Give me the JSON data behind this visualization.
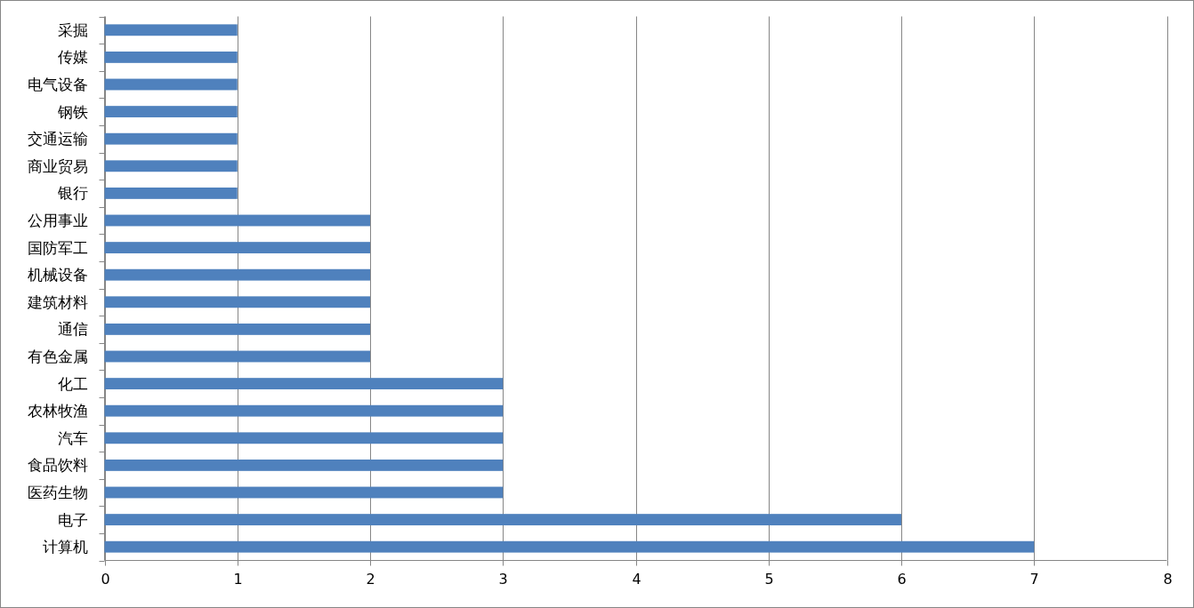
{
  "chart_data": {
    "type": "bar",
    "orientation": "horizontal",
    "categories": [
      "采掘",
      "传媒",
      "电气设备",
      "钢铁",
      "交通运输",
      "商业贸易",
      "银行",
      "公用事业",
      "国防军工",
      "机械设备",
      "建筑材料",
      "通信",
      "有色金属",
      "化工",
      "农林牧渔",
      "汽车",
      "食品饮料",
      "医药生物",
      "电子",
      "计算机"
    ],
    "values": [
      1,
      1,
      1,
      1,
      1,
      1,
      1,
      2,
      2,
      2,
      2,
      2,
      2,
      3,
      3,
      3,
      3,
      3,
      6,
      7
    ],
    "color": "#4f81bd",
    "xlim": [
      0,
      8
    ],
    "xticks": [
      0,
      1,
      2,
      3,
      4,
      5,
      6,
      7,
      8
    ],
    "grid": "x"
  }
}
